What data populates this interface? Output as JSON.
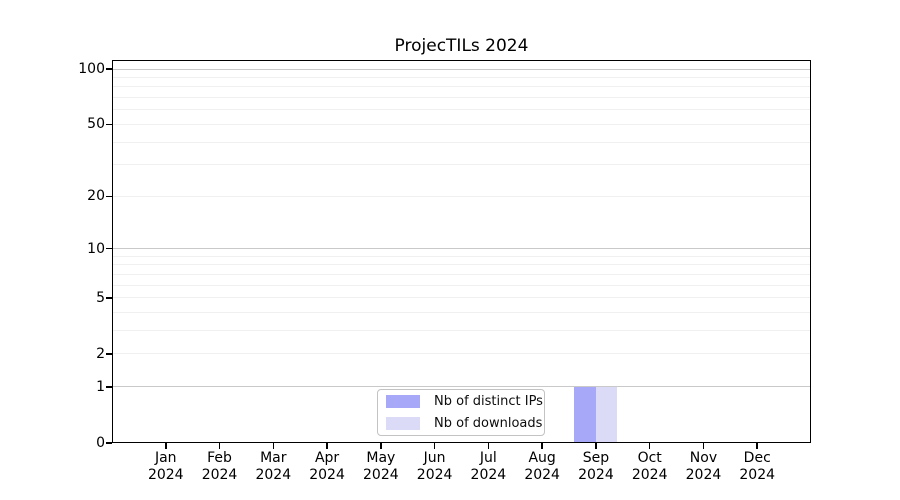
{
  "figure": {
    "title": "ProjecTILs 2024"
  },
  "chart_data": {
    "type": "bar",
    "title": "ProjecTILs 2024",
    "yscale": "log1p",
    "xlabel": "",
    "ylabel": "",
    "x_tick_months": [
      "Jan",
      "Feb",
      "Mar",
      "Apr",
      "May",
      "Jun",
      "Jul",
      "Aug",
      "Sep",
      "Oct",
      "Nov",
      "Dec"
    ],
    "x_tick_year": "2024",
    "series": [
      {
        "name": "Nb of distinct IPs",
        "color": "#a8a8f8",
        "values": [
          0,
          0,
          0,
          0,
          0,
          0,
          0,
          0,
          1,
          0,
          0,
          0
        ]
      },
      {
        "name": "Nb of downloads",
        "color": "#dbdbf8",
        "values": [
          0,
          0,
          0,
          0,
          0,
          0,
          0,
          0,
          1,
          0,
          0,
          0
        ]
      }
    ],
    "y_tick_values": [
      0,
      1,
      2,
      5,
      10,
      20,
      50,
      100
    ],
    "major_gridline_values": [
      1,
      10,
      100
    ],
    "minor_gridline_values": [
      2,
      3,
      4,
      5,
      6,
      7,
      8,
      9,
      20,
      30,
      40,
      50,
      60,
      70,
      80,
      90
    ],
    "ylim": [
      0,
      112
    ],
    "grid": true,
    "legend_position": "lower center",
    "colors": {
      "major_grid": "#c9c9c9",
      "minor_grid": "#f0f0f0",
      "spine": "#000000",
      "text": "#000000"
    }
  }
}
